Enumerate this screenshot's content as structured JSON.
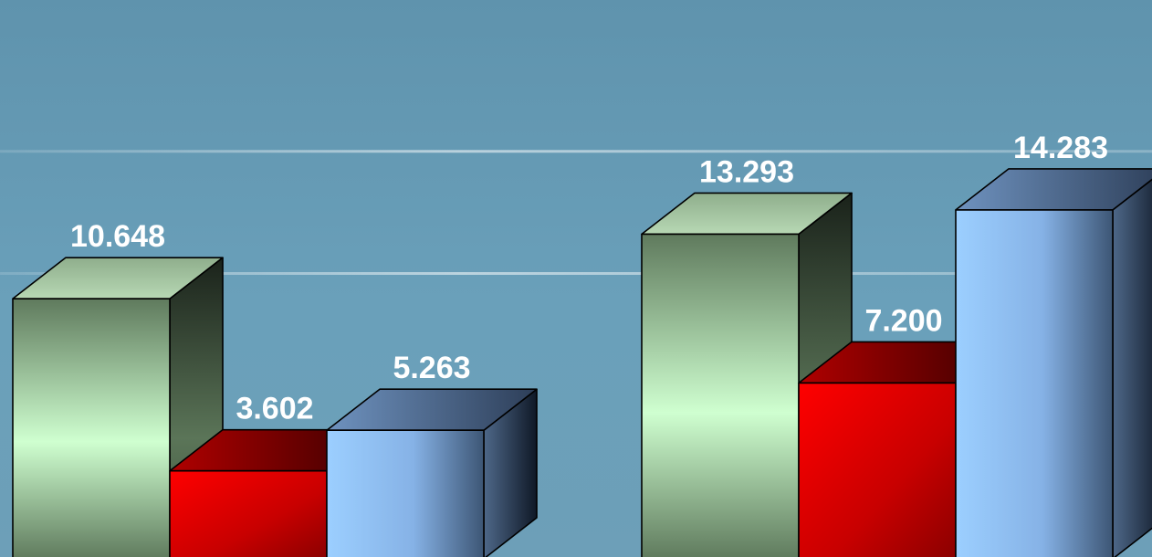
{
  "chart_data": {
    "type": "bar",
    "style": "3d",
    "categories": [
      "",
      ""
    ],
    "series": [
      {
        "values": [
          10.648,
          13.293
        ],
        "color": "#cfffd0"
      },
      {
        "values": [
          3.602,
          7.2
        ],
        "color": "#ff0000"
      },
      {
        "values": [
          5.263,
          14.283
        ],
        "color": "#9ccfff"
      }
    ],
    "data_labels": [
      [
        "10.648",
        "13.293"
      ],
      [
        "3.602",
        "7.200"
      ],
      [
        "5.263",
        "14.283"
      ]
    ],
    "title": "",
    "xlabel": "",
    "ylabel": "",
    "ylim": [
      0,
      15.4
    ],
    "grid": true,
    "legend": "none"
  }
}
